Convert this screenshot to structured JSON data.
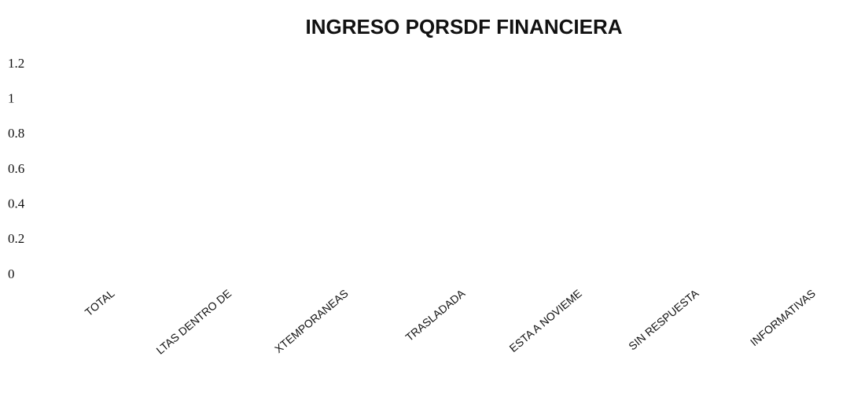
{
  "chart_data": {
    "type": "bar",
    "title": "INGRESO  PQRSDF FINANCIERA",
    "categories": [
      "TOTAL",
      "LTAS DENTRO DE",
      "XTEMPORANEAS",
      "TRASLADADA",
      "ESTA A NOVIEME",
      "SIN RESPUESTA",
      "INFORMATIVAS"
    ],
    "values": [
      0,
      0,
      0,
      0,
      0,
      0,
      0
    ],
    "color": "#4f81bd",
    "ylim": [
      0,
      1.2
    ],
    "yticks": [
      0,
      0.2,
      0.4,
      0.6,
      0.8,
      1,
      1.2
    ],
    "grid": false
  }
}
